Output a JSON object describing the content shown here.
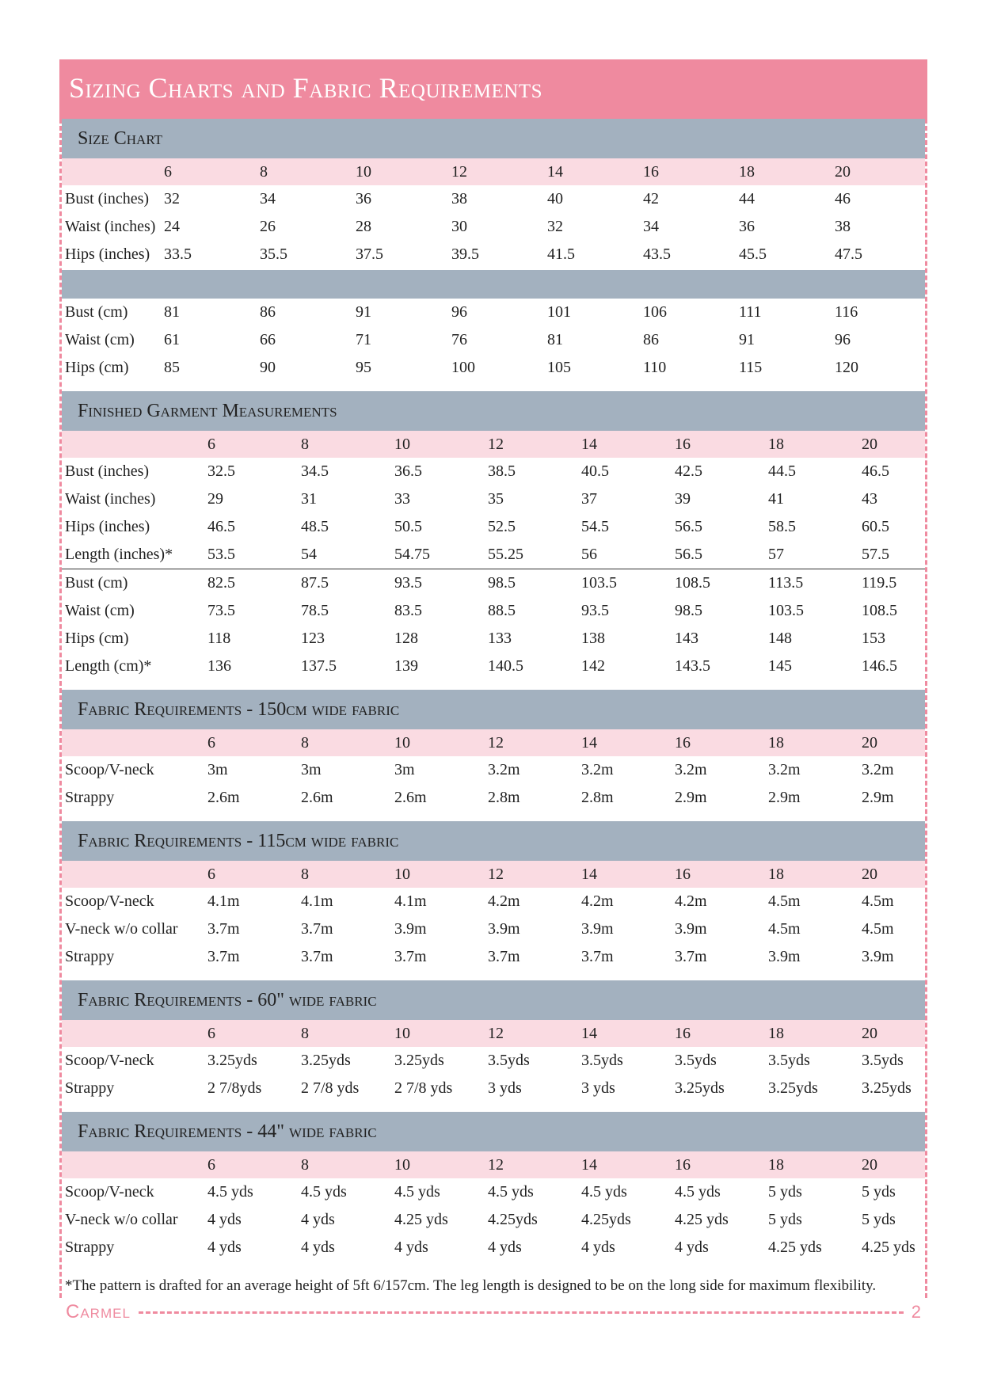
{
  "header": {
    "title": "Sizing Charts and Fabric Requirements"
  },
  "sections": [
    {
      "title": "Size Chart",
      "sizes": [
        "6",
        "8",
        "10",
        "12",
        "14",
        "16",
        "18",
        "20"
      ],
      "groups": [
        [
          {
            "label": "Bust (inches)",
            "values": [
              "32",
              "34",
              "36",
              "38",
              "40",
              "42",
              "44",
              "46"
            ]
          },
          {
            "label": "Waist (inches)",
            "values": [
              "24",
              "26",
              "28",
              "30",
              "32",
              "34",
              "36",
              "38"
            ]
          },
          {
            "label": "Hips (inches)",
            "values": [
              "33.5",
              "35.5",
              "37.5",
              "39.5",
              "41.5",
              "43.5",
              "45.5",
              "47.5"
            ]
          }
        ],
        [
          {
            "label": "Bust (cm)",
            "values": [
              "81",
              "86",
              "91",
              "96",
              "101",
              "106",
              "111",
              "116"
            ]
          },
          {
            "label": "Waist (cm)",
            "values": [
              "61",
              "66",
              "71",
              "76",
              "81",
              "86",
              "91",
              "96"
            ]
          },
          {
            "label": "Hips (cm)",
            "values": [
              "85",
              "90",
              "95",
              "100",
              "105",
              "110",
              "115",
              "120"
            ]
          }
        ]
      ]
    },
    {
      "title": "Finished Garment Measurements",
      "sizes": [
        "6",
        "8",
        "10",
        "12",
        "14",
        "16",
        "18",
        "20"
      ],
      "groups": [
        [
          {
            "label": "Bust (inches)",
            "values": [
              "32.5",
              "34.5",
              "36.5",
              "38.5",
              "40.5",
              "42.5",
              "44.5",
              "46.5"
            ]
          },
          {
            "label": "Waist (inches)",
            "values": [
              "29",
              "31",
              "33",
              "35",
              "37",
              "39",
              "41",
              "43"
            ]
          },
          {
            "label": "Hips (inches)",
            "values": [
              "46.5",
              "48.5",
              "50.5",
              "52.5",
              "54.5",
              "56.5",
              "58.5",
              "60.5"
            ]
          },
          {
            "label": "Length (inches)*",
            "values": [
              "53.5",
              "54",
              "54.75",
              "55.25",
              "56",
              "56.5",
              "57",
              "57.5"
            ]
          }
        ],
        [
          {
            "label": "Bust (cm)",
            "values": [
              "82.5",
              "87.5",
              "93.5",
              "98.5",
              "103.5",
              "108.5",
              "113.5",
              "119.5"
            ]
          },
          {
            "label": "Waist (cm)",
            "values": [
              "73.5",
              "78.5",
              "83.5",
              "88.5",
              "93.5",
              "98.5",
              "103.5",
              "108.5"
            ]
          },
          {
            "label": "Hips (cm)",
            "values": [
              "118",
              "123",
              "128",
              "133",
              "138",
              "143",
              "148",
              "153"
            ]
          },
          {
            "label": "Length (cm)*",
            "values": [
              "136",
              "137.5",
              "139",
              "140.5",
              "142",
              "143.5",
              "145",
              "146.5"
            ]
          }
        ]
      ]
    },
    {
      "title": "Fabric Requirements - 150cm wide fabric",
      "sizes": [
        "6",
        "8",
        "10",
        "12",
        "14",
        "16",
        "18",
        "20"
      ],
      "groups": [
        [
          {
            "label": "Scoop/V-neck",
            "values": [
              "3m",
              "3m",
              "3m",
              "3.2m",
              "3.2m",
              "3.2m",
              "3.2m",
              "3.2m"
            ]
          },
          {
            "label": "Strappy",
            "values": [
              "2.6m",
              "2.6m",
              "2.6m",
              "2.8m",
              "2.8m",
              "2.9m",
              "2.9m",
              "2.9m"
            ]
          }
        ]
      ]
    },
    {
      "title": "Fabric Requirements - 115cm wide fabric",
      "sizes": [
        "6",
        "8",
        "10",
        "12",
        "14",
        "16",
        "18",
        "20"
      ],
      "groups": [
        [
          {
            "label": "Scoop/V-neck",
            "values": [
              "4.1m",
              "4.1m",
              "4.1m",
              "4.2m",
              "4.2m",
              "4.2m",
              "4.5m",
              "4.5m"
            ]
          },
          {
            "label": "V-neck w/o collar",
            "values": [
              "3.7m",
              "3.7m",
              "3.9m",
              "3.9m",
              "3.9m",
              "3.9m",
              "4.5m",
              "4.5m"
            ]
          },
          {
            "label": "Strappy",
            "values": [
              "3.7m",
              "3.7m",
              "3.7m",
              "3.7m",
              "3.7m",
              "3.7m",
              "3.9m",
              "3.9m"
            ]
          }
        ]
      ]
    },
    {
      "title": "Fabric Requirements - 60\" wide fabric",
      "sizes": [
        "6",
        "8",
        "10",
        "12",
        "14",
        "16",
        "18",
        "20"
      ],
      "groups": [
        [
          {
            "label": "Scoop/V-neck",
            "values": [
              "3.25yds",
              "3.25yds",
              "3.25yds",
              "3.5yds",
              "3.5yds",
              "3.5yds",
              "3.5yds",
              "3.5yds"
            ]
          },
          {
            "label": "Strappy",
            "values": [
              "2 7/8yds",
              "2 7/8 yds",
              "2 7/8 yds",
              "3 yds",
              "3 yds",
              "3.25yds",
              "3.25yds",
              "3.25yds"
            ]
          }
        ]
      ]
    },
    {
      "title": "Fabric Requirements - 44\" wide fabric",
      "sizes": [
        "6",
        "8",
        "10",
        "12",
        "14",
        "16",
        "18",
        "20"
      ],
      "groups": [
        [
          {
            "label": "Scoop/V-neck",
            "values": [
              "4.5 yds",
              "4.5 yds",
              "4.5 yds",
              "4.5 yds",
              "4.5 yds",
              "4.5 yds",
              "5 yds",
              "5 yds"
            ]
          },
          {
            "label": "V-neck w/o collar",
            "values": [
              "4 yds",
              "4 yds",
              "4.25 yds",
              "4.25yds",
              "4.25yds",
              "4.25 yds",
              "5 yds",
              "5 yds"
            ]
          },
          {
            "label": "Strappy",
            "values": [
              "4 yds",
              "4 yds",
              "4 yds",
              "4 yds",
              "4 yds",
              "4 yds",
              "4.25 yds",
              "4.25 yds"
            ]
          }
        ]
      ]
    }
  ],
  "footnote": "*The pattern is drafted for an average height of 5ft 6/157cm. The leg length is designed to be on the long side for maximum flexibility.",
  "footer": {
    "brand": "Carmel",
    "page": "2"
  }
}
